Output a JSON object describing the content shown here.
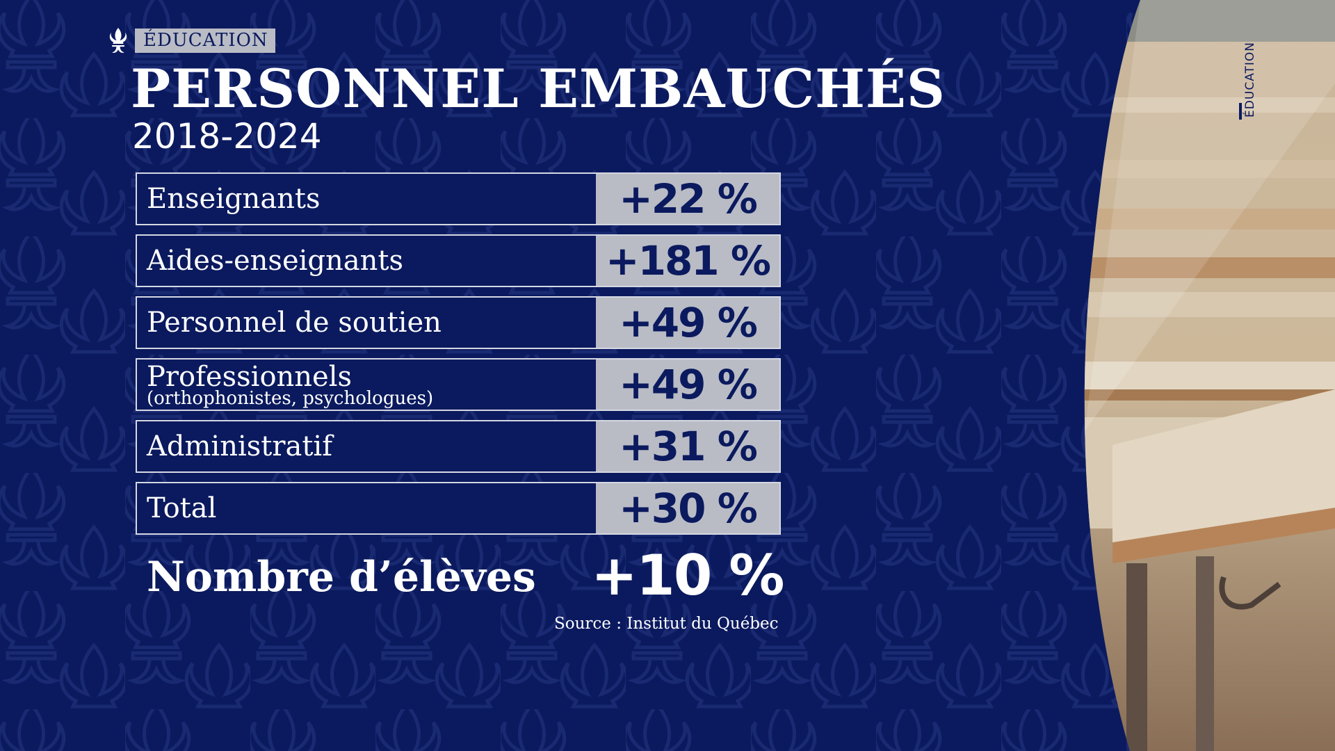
{
  "tag": {
    "label": "ÉDUCATION",
    "icon": "fleur-de-lis-icon"
  },
  "title": "PERSONNEL EMBAUCHÉS",
  "subtitle": "2018-2024",
  "rows": [
    {
      "label": "Enseignants",
      "sublabel": "",
      "value": "+22 %"
    },
    {
      "label": "Aides-enseignants",
      "sublabel": "",
      "value": "+181 %"
    },
    {
      "label": "Personnel de soutien",
      "sublabel": "",
      "value": "+49 %"
    },
    {
      "label": "Professionnels",
      "sublabel": "(orthophonistes, psychologues)",
      "value": "+49 %"
    },
    {
      "label": "Administratif",
      "sublabel": "",
      "value": "+31 %"
    },
    {
      "label": "Total",
      "sublabel": "",
      "value": "+30 %"
    }
  ],
  "eleves": {
    "label": "Nombre d’élèves",
    "value": "+10 %"
  },
  "source": "Source : Institut du Québec",
  "side_tag": "ÉDUCATION",
  "colors": {
    "background": "#0b1a5e",
    "value_cell": "#b9bcc5",
    "text": "#ffffff"
  }
}
